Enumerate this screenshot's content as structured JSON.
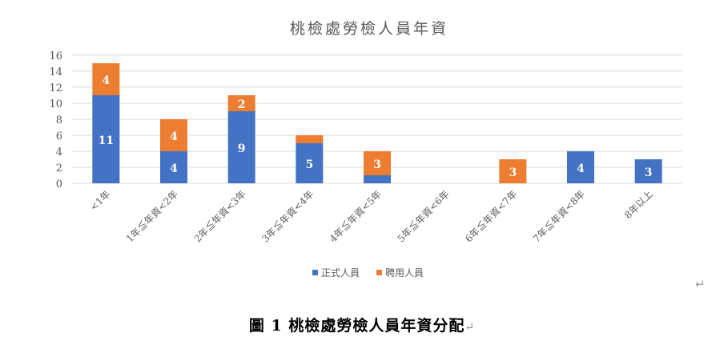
{
  "chart_data": {
    "type": "bar",
    "stacked": true,
    "title": "桃檢處勞檢人員年資",
    "categories": [
      "<1年",
      "1年≦年資<2年",
      "2年≦年資<3年",
      "3年≦年資<4年",
      "4年≦年資<5年",
      "5年≦年資<6年",
      "6年≦年資<7年",
      "7年≦年資<8年",
      "8年以上"
    ],
    "series": [
      {
        "name": "正式人員",
        "color": "#4472C4",
        "values": [
          11,
          4,
          9,
          5,
          1,
          0,
          0,
          4,
          3
        ],
        "labels": [
          "11",
          "4",
          "9",
          "5",
          "",
          "",
          "",
          "4",
          "3"
        ]
      },
      {
        "name": "聘用人員",
        "color": "#ED7D31",
        "values": [
          4,
          4,
          2,
          1,
          3,
          0,
          3,
          0,
          0
        ],
        "labels": [
          "4",
          "4",
          "2",
          "",
          "3",
          "",
          "3",
          "",
          ""
        ]
      }
    ],
    "ylim": [
      0,
      16
    ],
    "yticks": [
      0,
      2,
      4,
      6,
      8,
      10,
      12,
      14,
      16
    ],
    "grid": true,
    "legend": "bottom"
  },
  "caption": {
    "text": "圖 1  桃檢處勞檢人員年資分配",
    "mark": "↵"
  },
  "page_mark": "↵"
}
